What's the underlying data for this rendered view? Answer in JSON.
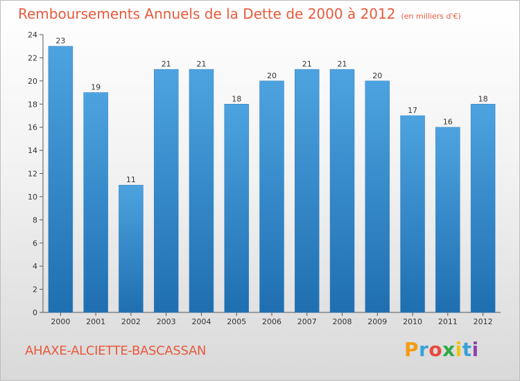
{
  "header": {
    "title": "Remboursements Annuels de la Dette de 2000 à 2012",
    "subtitle": "(en milliers d'€)"
  },
  "footer": {
    "commune": "AHAXE-ALCIETTE-BASCASSAN",
    "logo_text": "Proxiti",
    "logo_colors": [
      "#f39c12",
      "#3aa1d8",
      "#e74c3c",
      "#2eaa4a",
      "#f1c40f",
      "#3aa1d8",
      "#8e44ad"
    ]
  },
  "colors": {
    "bar": "#4da3e0",
    "bar_dark": "#1f6fb0",
    "title": "#e8593c"
  },
  "chart_data": {
    "type": "bar",
    "categories": [
      "2000",
      "2001",
      "2002",
      "2003",
      "2004",
      "2005",
      "2006",
      "2007",
      "2008",
      "2009",
      "2010",
      "2011",
      "2012"
    ],
    "values": [
      23,
      19,
      11,
      21,
      21,
      18,
      20,
      21,
      21,
      20,
      17,
      16,
      18
    ],
    "ylim": [
      0,
      24
    ],
    "yticks": [
      0,
      2,
      4,
      6,
      8,
      10,
      12,
      14,
      16,
      18,
      20,
      22,
      24
    ],
    "grid": false,
    "legend": "none"
  }
}
